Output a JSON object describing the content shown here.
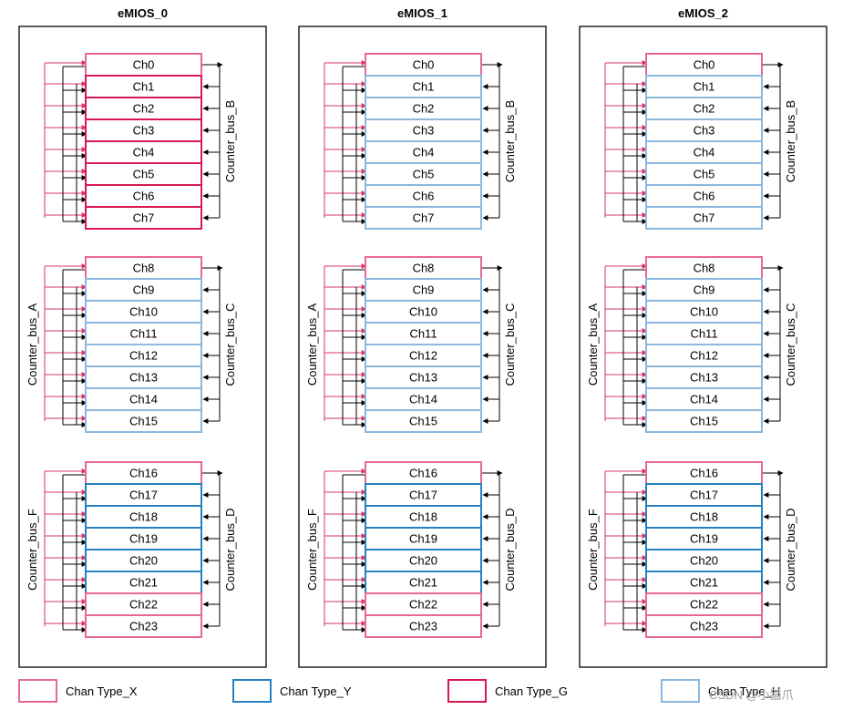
{
  "modules": [
    {
      "title": "eMIOS_0",
      "groups": [
        {
          "channels": [
            {
              "label": "Ch0",
              "type": "X"
            },
            {
              "label": "Ch1",
              "type": "G"
            },
            {
              "label": "Ch2",
              "type": "G"
            },
            {
              "label": "Ch3",
              "type": "G"
            },
            {
              "label": "Ch4",
              "type": "G"
            },
            {
              "label": "Ch5",
              "type": "G"
            },
            {
              "label": "Ch6",
              "type": "G"
            },
            {
              "label": "Ch7",
              "type": "G"
            }
          ],
          "right_bus": "Counter_bus_B",
          "left_bus": ""
        },
        {
          "channels": [
            {
              "label": "Ch8",
              "type": "X"
            },
            {
              "label": "Ch9",
              "type": "H"
            },
            {
              "label": "Ch10",
              "type": "H"
            },
            {
              "label": "Ch11",
              "type": "H"
            },
            {
              "label": "Ch12",
              "type": "H"
            },
            {
              "label": "Ch13",
              "type": "H"
            },
            {
              "label": "Ch14",
              "type": "H"
            },
            {
              "label": "Ch15",
              "type": "H"
            }
          ],
          "right_bus": "Counter_bus_C",
          "left_bus": "Counter_bus_A"
        },
        {
          "channels": [
            {
              "label": "Ch16",
              "type": "X"
            },
            {
              "label": "Ch17",
              "type": "Y"
            },
            {
              "label": "Ch18",
              "type": "Y"
            },
            {
              "label": "Ch19",
              "type": "Y"
            },
            {
              "label": "Ch20",
              "type": "Y"
            },
            {
              "label": "Ch21",
              "type": "Y"
            },
            {
              "label": "Ch22",
              "type": "X"
            },
            {
              "label": "Ch23",
              "type": "X"
            }
          ],
          "right_bus": "Counter_bus_D",
          "left_bus": "Counter_bus_F"
        }
      ]
    },
    {
      "title": "eMIOS_1",
      "groups": [
        {
          "channels": [
            {
              "label": "Ch0",
              "type": "X"
            },
            {
              "label": "Ch1",
              "type": "H"
            },
            {
              "label": "Ch2",
              "type": "H"
            },
            {
              "label": "Ch3",
              "type": "H"
            },
            {
              "label": "Ch4",
              "type": "H"
            },
            {
              "label": "Ch5",
              "type": "H"
            },
            {
              "label": "Ch6",
              "type": "H"
            },
            {
              "label": "Ch7",
              "type": "H"
            }
          ],
          "right_bus": "Counter_bus_B",
          "left_bus": ""
        },
        {
          "channels": [
            {
              "label": "Ch8",
              "type": "X"
            },
            {
              "label": "Ch9",
              "type": "H"
            },
            {
              "label": "Ch10",
              "type": "H"
            },
            {
              "label": "Ch11",
              "type": "H"
            },
            {
              "label": "Ch12",
              "type": "H"
            },
            {
              "label": "Ch13",
              "type": "H"
            },
            {
              "label": "Ch14",
              "type": "H"
            },
            {
              "label": "Ch15",
              "type": "H"
            }
          ],
          "right_bus": "Counter_bus_C",
          "left_bus": "Counter_bus_A"
        },
        {
          "channels": [
            {
              "label": "Ch16",
              "type": "X"
            },
            {
              "label": "Ch17",
              "type": "Y"
            },
            {
              "label": "Ch18",
              "type": "Y"
            },
            {
              "label": "Ch19",
              "type": "Y"
            },
            {
              "label": "Ch20",
              "type": "Y"
            },
            {
              "label": "Ch21",
              "type": "Y"
            },
            {
              "label": "Ch22",
              "type": "X"
            },
            {
              "label": "Ch23",
              "type": "X"
            }
          ],
          "right_bus": "Counter_bus_D",
          "left_bus": "Counter_bus_F"
        }
      ]
    },
    {
      "title": "eMIOS_2",
      "groups": [
        {
          "channels": [
            {
              "label": "Ch0",
              "type": "X"
            },
            {
              "label": "Ch1",
              "type": "H"
            },
            {
              "label": "Ch2",
              "type": "H"
            },
            {
              "label": "Ch3",
              "type": "H"
            },
            {
              "label": "Ch4",
              "type": "H"
            },
            {
              "label": "Ch5",
              "type": "H"
            },
            {
              "label": "Ch6",
              "type": "H"
            },
            {
              "label": "Ch7",
              "type": "H"
            }
          ],
          "right_bus": "Counter_bus_B",
          "left_bus": ""
        },
        {
          "channels": [
            {
              "label": "Ch8",
              "type": "X"
            },
            {
              "label": "Ch9",
              "type": "H"
            },
            {
              "label": "Ch10",
              "type": "H"
            },
            {
              "label": "Ch11",
              "type": "H"
            },
            {
              "label": "Ch12",
              "type": "H"
            },
            {
              "label": "Ch13",
              "type": "H"
            },
            {
              "label": "Ch14",
              "type": "H"
            },
            {
              "label": "Ch15",
              "type": "H"
            }
          ],
          "right_bus": "Counter_bus_C",
          "left_bus": "Counter_bus_A"
        },
        {
          "channels": [
            {
              "label": "Ch16",
              "type": "X"
            },
            {
              "label": "Ch17",
              "type": "Y"
            },
            {
              "label": "Ch18",
              "type": "Y"
            },
            {
              "label": "Ch19",
              "type": "Y"
            },
            {
              "label": "Ch20",
              "type": "Y"
            },
            {
              "label": "Ch21",
              "type": "Y"
            },
            {
              "label": "Ch22",
              "type": "X"
            },
            {
              "label": "Ch23",
              "type": "X"
            }
          ],
          "right_bus": "Counter_bus_D",
          "left_bus": "Counter_bus_F"
        }
      ]
    }
  ],
  "legend": [
    {
      "type": "X",
      "label": "Chan Type_X"
    },
    {
      "type": "Y",
      "label": "Chan Type_Y"
    },
    {
      "type": "G",
      "label": "Chan Type_G"
    },
    {
      "type": "H",
      "label": "Chan Type_H"
    }
  ],
  "channel_type_colors": {
    "X": "#e8679a",
    "Y": "#2580c3",
    "G": "#d6194f",
    "H": "#8ab8df"
  },
  "connector_colors": {
    "master": "#d6336c",
    "slave": "#000000"
  },
  "watermark": "CSDN @小猫爪"
}
